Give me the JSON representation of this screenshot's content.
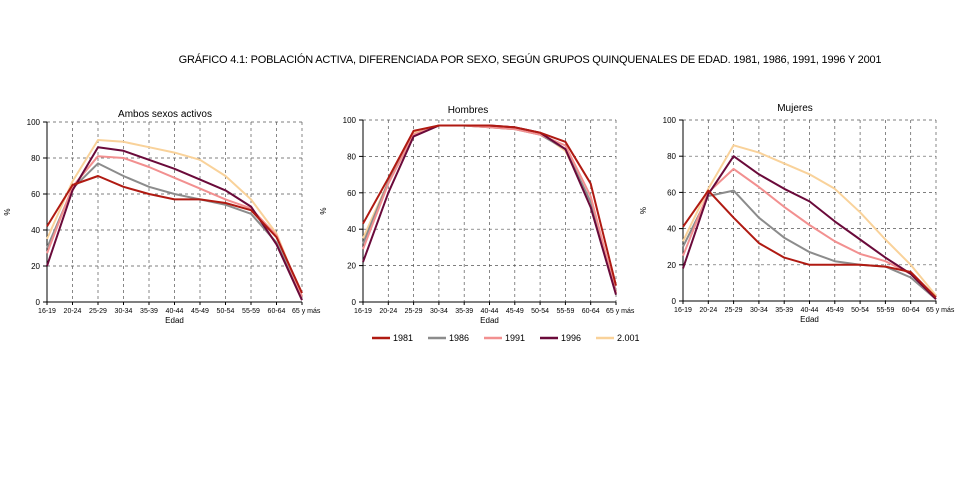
{
  "main_title": "GRÁFICO 4.1: POBLACIÓN ACTIVA, DIFERENCIADA POR SEXO, SEGÚN GRUPOS QUINQUENALES DE EDAD. 1981, 1986, 1991, 1996 Y 2001",
  "colors": {
    "1981": "#b01a12",
    "1986": "#8c8c8c",
    "1991": "#f29090",
    "1996": "#6a0a3a",
    "2.001": "#f9d29a"
  },
  "legend": [
    "1981",
    "1986",
    "1991",
    "1996",
    "2.001"
  ],
  "chart_data": [
    {
      "type": "line",
      "title": "Ambos sexos activos",
      "xlabel": "Edad",
      "ylabel": "%",
      "ylim": [
        0,
        100
      ],
      "yticks": [
        0,
        20,
        40,
        60,
        80,
        100
      ],
      "grid": true,
      "categories": [
        "16-19",
        "20-24",
        "25-29",
        "30-34",
        "35-39",
        "40-44",
        "45-49",
        "50-54",
        "55-59",
        "60-64",
        "65 y más"
      ],
      "series": [
        {
          "name": "1981",
          "values": [
            42,
            65,
            70,
            64,
            60,
            57,
            57,
            55,
            51,
            36,
            5
          ]
        },
        {
          "name": "1986",
          "values": [
            30,
            63,
            77,
            70,
            64,
            60,
            57,
            54,
            49,
            33,
            3
          ]
        },
        {
          "name": "1991",
          "values": [
            27,
            64,
            81,
            80,
            75,
            69,
            63,
            57,
            52,
            37,
            3
          ]
        },
        {
          "name": "1996",
          "values": [
            20,
            62,
            86,
            84,
            79,
            74,
            68,
            62,
            53,
            32,
            1
          ]
        },
        {
          "name": "2.001",
          "values": [
            35,
            67,
            90,
            89,
            86,
            83,
            79,
            70,
            57,
            38,
            3
          ]
        }
      ]
    },
    {
      "type": "line",
      "title": "Hombres",
      "xlabel": "Edad",
      "ylabel": "%",
      "ylim": [
        0,
        100
      ],
      "yticks": [
        0,
        20,
        40,
        60,
        80,
        100
      ],
      "grid": true,
      "categories": [
        "16-19",
        "20-24",
        "25-29",
        "30-34",
        "35-39",
        "40-44",
        "45-49",
        "50-54",
        "55-59",
        "60-64",
        "65 y más"
      ],
      "series": [
        {
          "name": "1981",
          "values": [
            43,
            68,
            94,
            97,
            97,
            97,
            96,
            93,
            88,
            65,
            9
          ]
        },
        {
          "name": "1986",
          "values": [
            32,
            66,
            92,
            97,
            97,
            96,
            95,
            92,
            84,
            55,
            6
          ]
        },
        {
          "name": "1991",
          "values": [
            29,
            65,
            92,
            97,
            97,
            96,
            95,
            92,
            86,
            58,
            5
          ]
        },
        {
          "name": "1996",
          "values": [
            22,
            60,
            91,
            97,
            97,
            97,
            96,
            93,
            84,
            52,
            4
          ]
        },
        {
          "name": "2.001",
          "values": [
            35,
            66,
            93,
            97,
            97,
            96,
            95,
            93,
            83,
            55,
            5
          ]
        }
      ]
    },
    {
      "type": "line",
      "title": "Mujeres",
      "xlabel": "Edad",
      "ylabel": "%",
      "ylim": [
        0,
        100
      ],
      "yticks": [
        0,
        20,
        40,
        60,
        80,
        100
      ],
      "grid": true,
      "categories": [
        "16-19",
        "20-24",
        "25-29",
        "30-34",
        "35-39",
        "40-44",
        "45-49",
        "50-54",
        "55-59",
        "60-64",
        "65 y más"
      ],
      "series": [
        {
          "name": "1981",
          "values": [
            41,
            61,
            46,
            32,
            24,
            20,
            20,
            20,
            19,
            16,
            2
          ]
        },
        {
          "name": "1986",
          "values": [
            30,
            58,
            61,
            46,
            35,
            27,
            22,
            20,
            19,
            13,
            1
          ]
        },
        {
          "name": "1991",
          "values": [
            25,
            60,
            73,
            63,
            52,
            42,
            33,
            26,
            22,
            15,
            1
          ]
        },
        {
          "name": "1996",
          "values": [
            18,
            59,
            80,
            70,
            62,
            55,
            44,
            34,
            24,
            15,
            1
          ]
        },
        {
          "name": "2.001",
          "values": [
            33,
            62,
            86,
            82,
            76,
            70,
            62,
            49,
            34,
            20,
            3
          ]
        }
      ]
    }
  ]
}
